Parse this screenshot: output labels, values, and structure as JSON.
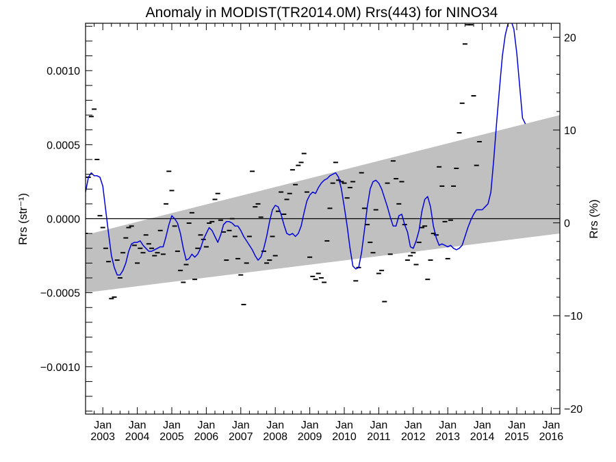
{
  "chart_data": {
    "type": "line",
    "title": "Anomaly in MODIST(TR2014.0M) Rrs(443) for NINO34",
    "ylabel_left": "Rrs (str⁻¹)",
    "ylabel_right": "Rrs (%)",
    "ylim_left": [
      -0.00132,
      0.00132
    ],
    "ylim_right": [
      -20.6,
      21.5
    ],
    "xlim": [
      "2002-07",
      "2016-04"
    ],
    "yticks_left": [
      {
        "value": 0.001,
        "label": "0.0010"
      },
      {
        "value": 0.0005,
        "label": "0.0005"
      },
      {
        "value": 0.0,
        "label": "0.0000"
      },
      {
        "value": -0.0005,
        "label": "−0.0005"
      },
      {
        "value": -0.001,
        "label": "−0.0010"
      }
    ],
    "yticks_right": [
      {
        "value": 20,
        "label": "20"
      },
      {
        "value": 10,
        "label": "10"
      },
      {
        "value": 0,
        "label": "0"
      },
      {
        "value": -10,
        "label": "−10"
      },
      {
        "value": -20,
        "label": "−20"
      }
    ],
    "xticks": [
      {
        "month_label": "Jan",
        "year_label": "2003"
      },
      {
        "month_label": "Jan",
        "year_label": "2004"
      },
      {
        "month_label": "Jan",
        "year_label": "2005"
      },
      {
        "month_label": "Jan",
        "year_label": "2006"
      },
      {
        "month_label": "Jan",
        "year_label": "2007"
      },
      {
        "month_label": "Jan",
        "year_label": "2008"
      },
      {
        "month_label": "Jan",
        "year_label": "2009"
      },
      {
        "month_label": "Jan",
        "year_label": "2010"
      },
      {
        "month_label": "Jan",
        "year_label": "2011"
      },
      {
        "month_label": "Jan",
        "year_label": "2012"
      },
      {
        "month_label": "Jan",
        "year_label": "2013"
      },
      {
        "month_label": "Jan",
        "year_label": "2014"
      },
      {
        "month_label": "Jan",
        "year_label": "2015"
      },
      {
        "month_label": "Jan",
        "year_label": "2016"
      }
    ],
    "zero_line": 0.0,
    "band": {
      "color": "#c0c0c0",
      "start": "2002-07",
      "end": "2016-04",
      "upper": [
        -0.00011,
        0.0007
      ],
      "lower": [
        -0.0005,
        -0.0001
      ]
    },
    "smooth_series": {
      "color": "#0000dd",
      "points": [
        [
          "2002-07",
          0.00018
        ],
        [
          "2002-08",
          0.00028
        ],
        [
          "2002-09",
          0.00031
        ],
        [
          "2002-10",
          0.00029
        ],
        [
          "2002-11",
          0.00029
        ],
        [
          "2002-12",
          0.00028
        ],
        [
          "2003-01",
          0.00022
        ],
        [
          "2003-02",
          6e-05
        ],
        [
          "2003-03",
          -0.0001
        ],
        [
          "2003-04",
          -0.00025
        ],
        [
          "2003-05",
          -0.00033
        ],
        [
          "2003-06",
          -0.00038
        ],
        [
          "2003-07",
          -0.00038
        ],
        [
          "2003-08",
          -0.00035
        ],
        [
          "2003-09",
          -0.0003
        ],
        [
          "2003-10",
          -0.00022
        ],
        [
          "2003-11",
          -0.00017
        ],
        [
          "2003-12",
          -0.00016
        ],
        [
          "2004-01",
          -0.00016
        ],
        [
          "2004-02",
          -0.00015
        ],
        [
          "2004-03",
          -0.00018
        ],
        [
          "2004-04",
          -0.0002
        ],
        [
          "2004-05",
          -0.00022
        ],
        [
          "2004-06",
          -0.00022
        ],
        [
          "2004-07",
          -0.00021
        ],
        [
          "2004-08",
          -0.0002
        ],
        [
          "2004-09",
          -0.00019
        ],
        [
          "2004-10",
          -0.00019
        ],
        [
          "2004-11",
          -0.00012
        ],
        [
          "2004-12",
          -4e-05
        ],
        [
          "2005-01",
          2e-05
        ],
        [
          "2005-02",
          0.0
        ],
        [
          "2005-03",
          -3e-05
        ],
        [
          "2005-04",
          -0.0001
        ],
        [
          "2005-05",
          -0.0002
        ],
        [
          "2005-06",
          -0.00028
        ],
        [
          "2005-07",
          -0.00027
        ],
        [
          "2005-08",
          -0.00024
        ],
        [
          "2005-09",
          -0.00026
        ],
        [
          "2005-10",
          -0.00024
        ],
        [
          "2005-11",
          -0.0002
        ],
        [
          "2005-12",
          -0.00014
        ],
        [
          "2006-01",
          -0.0001
        ],
        [
          "2006-02",
          -6e-05
        ],
        [
          "2006-03",
          -8e-05
        ],
        [
          "2006-04",
          -0.00012
        ],
        [
          "2006-05",
          -0.00016
        ],
        [
          "2006-06",
          -0.00011
        ],
        [
          "2006-07",
          -4e-05
        ],
        [
          "2006-08",
          -2e-05
        ],
        [
          "2006-09",
          -2e-05
        ],
        [
          "2006-10",
          -3e-05
        ],
        [
          "2006-11",
          -5e-05
        ],
        [
          "2006-12",
          -5e-05
        ],
        [
          "2007-01",
          -8e-05
        ],
        [
          "2007-02",
          -0.00012
        ],
        [
          "2007-03",
          -0.00015
        ],
        [
          "2007-04",
          -0.00018
        ],
        [
          "2007-05",
          -0.00021
        ],
        [
          "2007-06",
          -0.00025
        ],
        [
          "2007-07",
          -0.00028
        ],
        [
          "2007-08",
          -0.00026
        ],
        [
          "2007-09",
          -0.0002
        ],
        [
          "2007-10",
          -0.00012
        ],
        [
          "2007-11",
          -2e-05
        ],
        [
          "2007-12",
          6e-05
        ],
        [
          "2008-01",
          9e-05
        ],
        [
          "2008-02",
          8e-05
        ],
        [
          "2008-03",
          3e-05
        ],
        [
          "2008-04",
          -4e-05
        ],
        [
          "2008-05",
          -0.0001
        ],
        [
          "2008-06",
          -0.00011
        ],
        [
          "2008-07",
          -0.0001
        ],
        [
          "2008-08",
          -0.00012
        ],
        [
          "2008-09",
          -0.0001
        ],
        [
          "2008-10",
          -5e-05
        ],
        [
          "2008-11",
          4e-05
        ],
        [
          "2008-12",
          0.00012
        ],
        [
          "2009-01",
          0.00016
        ],
        [
          "2009-02",
          0.00018
        ],
        [
          "2009-03",
          0.00017
        ],
        [
          "2009-04",
          0.00021
        ],
        [
          "2009-05",
          0.00024
        ],
        [
          "2009-06",
          0.00026
        ],
        [
          "2009-07",
          0.00027
        ],
        [
          "2009-08",
          0.00029
        ],
        [
          "2009-09",
          0.0003
        ],
        [
          "2009-10",
          0.00031
        ],
        [
          "2009-11",
          0.00028
        ],
        [
          "2009-12",
          0.0002
        ],
        [
          "2010-01",
          8e-05
        ],
        [
          "2010-02",
          -5e-05
        ],
        [
          "2010-03",
          -0.0002
        ],
        [
          "2010-04",
          -0.00032
        ],
        [
          "2010-05",
          -0.00034
        ],
        [
          "2010-06",
          -0.00033
        ],
        [
          "2010-07",
          -0.00023
        ],
        [
          "2010-08",
          -8e-05
        ],
        [
          "2010-09",
          8e-05
        ],
        [
          "2010-10",
          0.0002
        ],
        [
          "2010-11",
          0.00025
        ],
        [
          "2010-12",
          0.00026
        ],
        [
          "2011-01",
          0.00024
        ],
        [
          "2011-02",
          0.0002
        ],
        [
          "2011-03",
          0.00014
        ],
        [
          "2011-04",
          8e-05
        ],
        [
          "2011-05",
          1e-05
        ],
        [
          "2011-06",
          -5e-05
        ],
        [
          "2011-07",
          -5e-05
        ],
        [
          "2011-08",
          2e-05
        ],
        [
          "2011-09",
          3e-05
        ],
        [
          "2011-10",
          -4e-05
        ],
        [
          "2011-11",
          -9e-05
        ],
        [
          "2011-12",
          -0.00019
        ],
        [
          "2012-01",
          -0.0002
        ],
        [
          "2012-02",
          -0.00015
        ],
        [
          "2012-03",
          -8e-05
        ],
        [
          "2012-04",
          5e-05
        ],
        [
          "2012-05",
          0.00013
        ],
        [
          "2012-06",
          0.00015
        ],
        [
          "2012-07",
          8e-05
        ],
        [
          "2012-08",
          -5e-05
        ],
        [
          "2012-09",
          -0.00013
        ],
        [
          "2012-10",
          -0.00018
        ],
        [
          "2012-11",
          -0.00017
        ],
        [
          "2012-12",
          -0.00018
        ],
        [
          "2013-01",
          -0.00019
        ],
        [
          "2013-02",
          -0.00018
        ],
        [
          "2013-03",
          -0.0002
        ],
        [
          "2013-04",
          -0.00021
        ],
        [
          "2013-05",
          -0.0002
        ],
        [
          "2013-06",
          -0.00018
        ],
        [
          "2013-07",
          -0.00012
        ],
        [
          "2013-08",
          -6e-05
        ],
        [
          "2013-09",
          -1e-05
        ],
        [
          "2013-10",
          3e-05
        ],
        [
          "2013-11",
          6e-05
        ],
        [
          "2013-12",
          6e-05
        ],
        [
          "2014-01",
          6e-05
        ],
        [
          "2014-02",
          8e-05
        ],
        [
          "2014-03",
          0.0001
        ],
        [
          "2014-04",
          0.00018
        ],
        [
          "2014-05",
          0.0004
        ],
        [
          "2014-06",
          0.00065
        ],
        [
          "2014-07",
          0.00088
        ],
        [
          "2014-08",
          0.0011
        ],
        [
          "2014-09",
          0.00124
        ],
        [
          "2014-10",
          0.00132
        ],
        [
          "2014-11",
          0.00134
        ],
        [
          "2014-12",
          0.00128
        ],
        [
          "2015-01",
          0.00112
        ],
        [
          "2015-02",
          0.0009
        ],
        [
          "2015-03",
          0.00068
        ],
        [
          "2015-04",
          0.00064
        ]
      ]
    },
    "monthly_points": [
      [
        "2002-07",
        -0.0001
      ],
      [
        "2002-08",
        0.00028
      ],
      [
        "2002-09",
        0.00069
      ],
      [
        "2002-10",
        0.00074
      ],
      [
        "2002-11",
        0.0004
      ],
      [
        "2002-12",
        2e-05
      ],
      [
        "2003-01",
        -6e-05
      ],
      [
        "2003-02",
        -0.0002
      ],
      [
        "2003-03",
        -0.00029
      ],
      [
        "2003-04",
        -0.00054
      ],
      [
        "2003-05",
        -0.00053
      ],
      [
        "2003-06",
        -0.00028
      ],
      [
        "2003-07",
        -0.0004
      ],
      [
        "2003-08",
        -0.00023
      ],
      [
        "2003-09",
        -0.00013
      ],
      [
        "2003-10",
        -6e-05
      ],
      [
        "2003-11",
        -5e-05
      ],
      [
        "2003-12",
        -0.00018
      ],
      [
        "2004-01",
        -0.0003
      ],
      [
        "2004-02",
        -0.0002
      ],
      [
        "2004-03",
        -0.00023
      ],
      [
        "2004-04",
        -0.00011
      ],
      [
        "2004-05",
        -0.00017
      ],
      [
        "2004-06",
        -0.0002
      ],
      [
        "2004-07",
        -0.00025
      ],
      [
        "2004-08",
        -0.00023
      ],
      [
        "2004-09",
        -8e-05
      ],
      [
        "2004-10",
        -0.00024
      ],
      [
        "2004-11",
        0.0001
      ],
      [
        "2004-12",
        0.00032
      ],
      [
        "2005-01",
        0.00019
      ],
      [
        "2005-02",
        -5e-05
      ],
      [
        "2005-03",
        -0.00022
      ],
      [
        "2005-04",
        -0.00035
      ],
      [
        "2005-05",
        -0.00043
      ],
      [
        "2005-06",
        -0.00031
      ],
      [
        "2005-07",
        -3e-05
      ],
      [
        "2005-08",
        4e-05
      ],
      [
        "2005-09",
        -0.00041
      ],
      [
        "2005-10",
        -0.0002
      ],
      [
        "2005-11",
        -0.00011
      ],
      [
        "2005-12",
        -0.00014
      ],
      [
        "2006-01",
        -0.00019
      ],
      [
        "2006-02",
        -3e-05
      ],
      [
        "2006-03",
        -2e-05
      ],
      [
        "2006-04",
        0.00013
      ],
      [
        "2006-05",
        0.00017
      ],
      [
        "2006-06",
        -1e-05
      ],
      [
        "2006-07",
        -9e-05
      ],
      [
        "2006-08",
        -0.00028
      ],
      [
        "2006-09",
        -8e-05
      ],
      [
        "2006-10",
        0.0
      ],
      [
        "2006-11",
        -0.00012
      ],
      [
        "2006-12",
        -0.00027
      ],
      [
        "2007-01",
        -0.00038
      ],
      [
        "2007-02",
        -0.00058
      ],
      [
        "2007-03",
        -0.0003
      ],
      [
        "2007-04",
        -0.00012
      ],
      [
        "2007-05",
        0.00032
      ],
      [
        "2007-06",
        8e-05
      ],
      [
        "2007-07",
        0.0001
      ],
      [
        "2007-08",
        1e-05
      ],
      [
        "2007-09",
        -0.00022
      ],
      [
        "2007-10",
        -0.0003
      ],
      [
        "2007-11",
        -0.00028
      ],
      [
        "2007-12",
        -0.00012
      ],
      [
        "2008-01",
        -0.00025
      ],
      [
        "2008-02",
        5e-05
      ],
      [
        "2008-03",
        0.00018
      ],
      [
        "2008-04",
        3e-05
      ],
      [
        "2008-05",
        0.00013
      ],
      [
        "2008-06",
        0.00017
      ],
      [
        "2008-07",
        0.00033
      ],
      [
        "2008-08",
        0.00023
      ],
      [
        "2008-09",
        0.00036
      ],
      [
        "2008-10",
        0.00038
      ],
      [
        "2008-11",
        0.00044
      ],
      [
        "2008-12",
        0.00018
      ],
      [
        "2009-01",
        -0.00026
      ],
      [
        "2009-02",
        -0.00039
      ],
      [
        "2009-03",
        -0.00041
      ],
      [
        "2009-04",
        -0.00037
      ],
      [
        "2009-05",
        -0.0004
      ],
      [
        "2009-06",
        -0.00043
      ],
      [
        "2009-07",
        -0.00015
      ],
      [
        "2009-08",
        7e-05
      ],
      [
        "2009-09",
        0.00024
      ],
      [
        "2009-10",
        0.00038
      ],
      [
        "2009-11",
        0.00026
      ],
      [
        "2009-12",
        0.00025
      ],
      [
        "2010-01",
        0.00024
      ],
      [
        "2010-02",
        0.00014
      ],
      [
        "2010-03",
        0.00021
      ],
      [
        "2010-04",
        0.00025
      ],
      [
        "2010-05",
        -0.00042
      ],
      [
        "2010-06",
        -0.00033
      ],
      [
        "2010-07",
        0.00031
      ],
      [
        "2010-08",
        7e-05
      ],
      [
        "2010-09",
        -4e-05
      ],
      [
        "2010-10",
        -0.00016
      ],
      [
        "2010-11",
        -0.00023
      ],
      [
        "2010-12",
        6e-05
      ],
      [
        "2011-01",
        -0.00037
      ],
      [
        "2011-02",
        -0.00035
      ],
      [
        "2011-03",
        -0.00056
      ],
      [
        "2011-04",
        0.00024
      ],
      [
        "2011-05",
        -0.00024
      ],
      [
        "2011-06",
        0.00039
      ],
      [
        "2011-07",
        0.00027
      ],
      [
        "2011-08",
        0.0001
      ],
      [
        "2011-09",
        0.00025
      ],
      [
        "2011-10",
        -4e-05
      ],
      [
        "2011-11",
        -0.00028
      ],
      [
        "2011-12",
        -0.00025
      ],
      [
        "2012-01",
        -0.00023
      ],
      [
        "2012-02",
        -0.00031
      ],
      [
        "2012-03",
        -0.00016
      ],
      [
        "2012-04",
        -6e-05
      ],
      [
        "2012-05",
        -5e-05
      ],
      [
        "2012-06",
        -0.00041
      ],
      [
        "2012-07",
        -0.00028
      ],
      [
        "2012-08",
        -0.0001
      ],
      [
        "2012-09",
        -0.00011
      ],
      [
        "2012-10",
        0.00035
      ],
      [
        "2012-11",
        0.00022
      ],
      [
        "2012-12",
        -2e-05
      ],
      [
        "2013-01",
        -0.00027
      ],
      [
        "2013-02",
        -1e-05
      ],
      [
        "2013-03",
        0.00022
      ],
      [
        "2013-04",
        0.00034
      ],
      [
        "2013-05",
        0.00058
      ],
      [
        "2013-06",
        0.00078
      ],
      [
        "2013-07",
        0.00118
      ],
      [
        "2013-08",
        0.00131
      ],
      [
        "2013-09",
        0.00131
      ],
      [
        "2013-10",
        0.00083
      ],
      [
        "2013-11",
        0.00036
      ],
      [
        "2013-12",
        0.00052
      ]
    ]
  }
}
